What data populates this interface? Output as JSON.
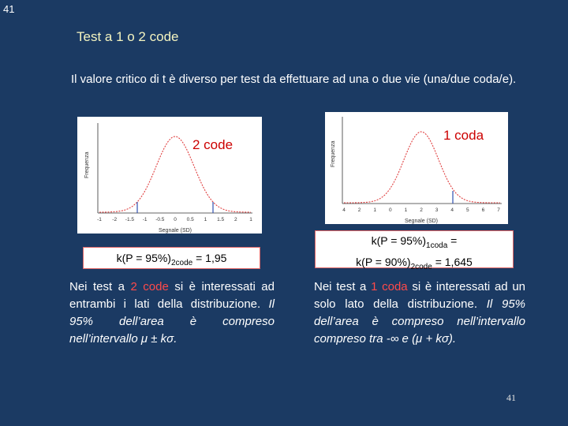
{
  "corner_number": "41",
  "title": "Test a 1 o 2 code",
  "intro": "Il valore critico di t è diverso per test da effettuare ad una o due vie (una/due coda/e).",
  "plot_left": {
    "label": "2 code",
    "ylabel": "Frequenza",
    "xlabel": "Segnale (SD)",
    "ticks": [
      "-1",
      "-2",
      "-1.5",
      "-1",
      "-0.5",
      "0",
      "0.5",
      "1",
      "1.5",
      "2",
      "1"
    ]
  },
  "plot_right": {
    "label": "1 coda",
    "ylabel": "Frequenza",
    "xlabel": "Segnale (SD)",
    "ticks": [
      "4",
      "2",
      "1",
      "0",
      "1",
      "2",
      "3",
      "4",
      "5",
      "6",
      "7"
    ]
  },
  "formula_left": {
    "pre": "k(P = 95%)",
    "sub": "2code",
    "post": " = 1,95"
  },
  "formula_right": {
    "line1_pre": "k(P = 95%)",
    "line1_sub": "1coda",
    "line1_post": " =",
    "line2_pre": "k(P = 90%)",
    "line2_sub": "2code",
    "line2_post": " = 1,645"
  },
  "note_left": {
    "a": "Nei test a ",
    "b": "2 code",
    "c": " si è interessati ad entrambi i lati della distribuzione. ",
    "d": "Il 95% dell’area è compreso nell’intervallo ",
    "e": "μ ± kσ."
  },
  "note_right": {
    "a": "Nei test a ",
    "b": "1 coda",
    "c": " si è interessati ad un solo lato della distribuzione. ",
    "d": "Il 95% dell’area è compreso nell’intervallo compreso tra -∞ e (μ + kσ)."
  },
  "page_number": "41",
  "colors": {
    "background": "#1b3a63",
    "title": "#f4f4c0",
    "accent_red": "#ff4a4a",
    "curve": "#e04040",
    "marker": "#3050b0"
  }
}
